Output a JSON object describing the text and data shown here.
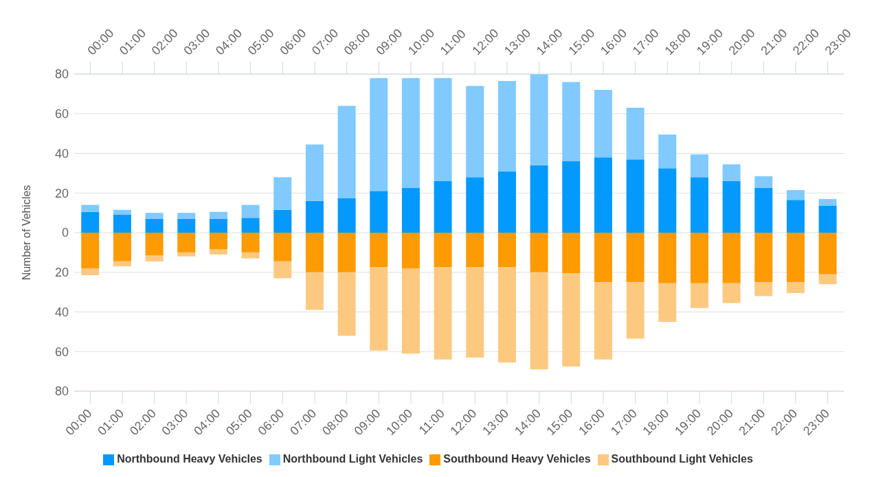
{
  "chart_data": {
    "type": "bar",
    "stacked": true,
    "ylabel": "Number of Vehicles",
    "categories": [
      "00:00",
      "01:00",
      "02:00",
      "03:00",
      "04:00",
      "05:00",
      "06:00",
      "07:00",
      "08:00",
      "09:00",
      "10:00",
      "11:00",
      "12:00",
      "13:00",
      "14:00",
      "15:00",
      "16:00",
      "17:00",
      "18:00",
      "19:00",
      "20:00",
      "21:00",
      "22:00",
      "23:00"
    ],
    "series": [
      {
        "name": "Northbound Heavy Vehicles",
        "color": "#0399fe",
        "values": [
          10.5,
          9,
          7,
          7,
          7,
          7.5,
          11.5,
          16,
          17.5,
          21,
          22.5,
          26,
          28,
          31,
          34,
          36,
          38,
          37,
          32.5,
          28,
          26,
          22.5,
          16.5,
          13.5
        ]
      },
      {
        "name": "Northbound Light Vehicles",
        "color": "#80caff",
        "values": [
          3.5,
          2.5,
          3,
          3,
          3.5,
          6.5,
          16.5,
          28.5,
          46.5,
          57,
          55.5,
          52,
          46,
          45.5,
          46,
          40,
          34,
          26,
          17,
          11.5,
          8.5,
          6,
          5,
          3.5
        ]
      },
      {
        "name": "Southbound Heavy Vehicles",
        "color": "#fe9a02",
        "values": [
          -18,
          -14.5,
          -11.5,
          -10,
          -8.5,
          -10,
          -14.5,
          -20,
          -20,
          -17.5,
          -18,
          -17.5,
          -17.5,
          -17.5,
          -20,
          -20.5,
          -25,
          -25,
          -25.5,
          -25.5,
          -25.5,
          -25,
          -25,
          -21
        ]
      },
      {
        "name": "Southbound Light Vehicles",
        "color": "#fdc981",
        "values": [
          -3.5,
          -2.5,
          -3,
          -2,
          -2.5,
          -3,
          -8.5,
          -19,
          -32,
          -42,
          -43,
          -46.5,
          -45.5,
          -48,
          -49,
          -47,
          -39,
          -28.5,
          -19.5,
          -12.5,
          -10,
          -7,
          -5.5,
          -5
        ]
      }
    ],
    "ylim": [
      -80,
      80
    ],
    "yticks": [
      {
        "value": -80,
        "label": "80"
      },
      {
        "value": -60,
        "label": "60"
      },
      {
        "value": -40,
        "label": "40"
      },
      {
        "value": -20,
        "label": "20"
      },
      0,
      20,
      40,
      60,
      80
    ],
    "grid": "y",
    "legend": "bottom"
  }
}
